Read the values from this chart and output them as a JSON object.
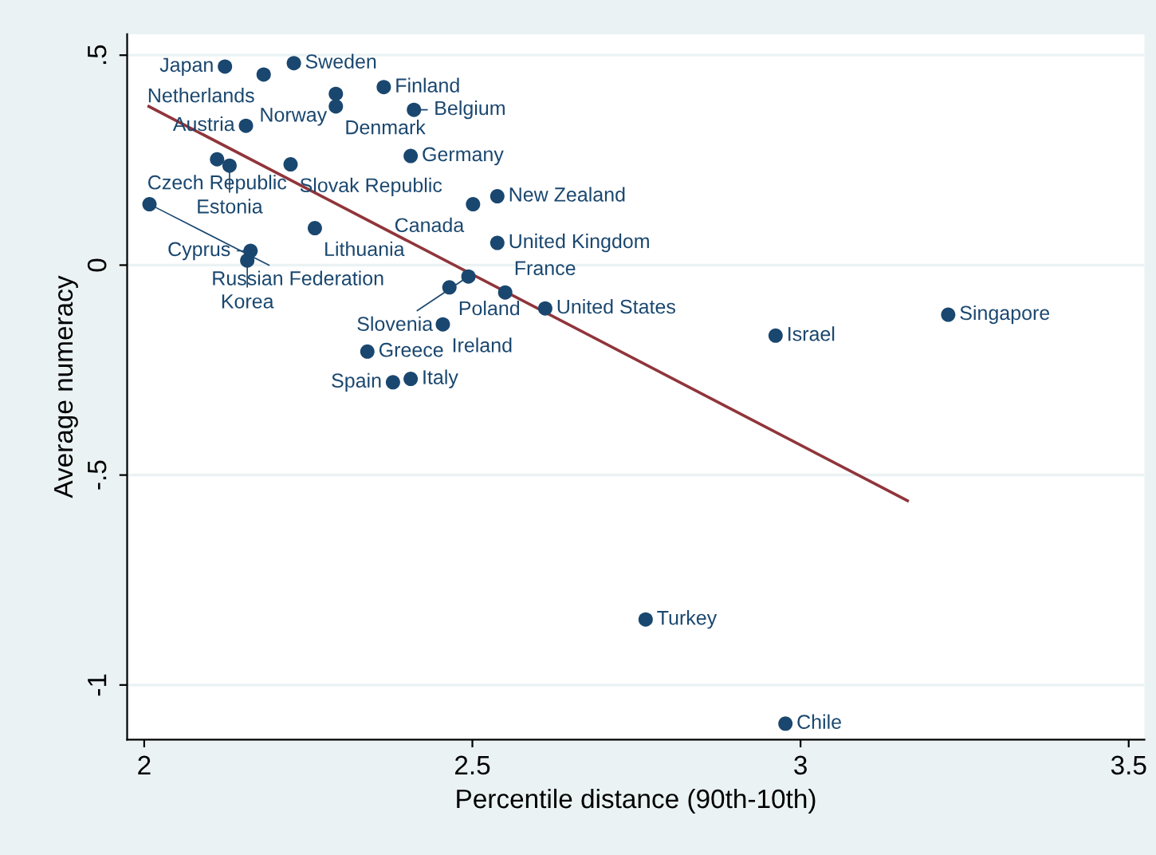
{
  "chart_data": {
    "type": "scatter",
    "xlabel": "Percentile distance (90th-10th)",
    "ylabel": "Average numeracy",
    "xlim": [
      1.974,
      3.524
    ],
    "ylim": [
      -1.13,
      0.55
    ],
    "xticks": [
      2,
      2.5,
      3,
      3.5
    ],
    "yticks": [
      {
        "value": -1,
        "label": "-1"
      },
      {
        "value": -0.5,
        "label": "-.5"
      },
      0,
      {
        "value": 0.5,
        "label": ".5"
      }
    ],
    "grid": "y",
    "series": [
      {
        "marker": "circle",
        "color": "#1a476f",
        "x": [
          2.123,
          2.228,
          2.182,
          2.365,
          2.292,
          2.292,
          2.411,
          2.155,
          2.111,
          2.13,
          2.223,
          2.406,
          2.008,
          2.501,
          2.538,
          2.26,
          2.538,
          2.162,
          2.157,
          2.494,
          2.465,
          2.55,
          2.611,
          2.455,
          2.34,
          2.406,
          2.379,
          2.962,
          3.225,
          2.764,
          2.977
        ],
        "values": [
          0.473,
          0.481,
          0.454,
          0.424,
          0.408,
          0.378,
          0.37,
          0.332,
          0.252,
          0.237,
          0.24,
          0.26,
          0.145,
          0.145,
          0.164,
          0.088,
          0.053,
          0.034,
          0.011,
          -0.027,
          -0.053,
          -0.065,
          -0.103,
          -0.141,
          -0.206,
          -0.271,
          -0.279,
          -0.168,
          -0.118,
          -0.844,
          -1.092
        ]
      },
      {
        "type": "line",
        "marker": "none",
        "color": "#90353b",
        "x": [
          2.007,
          3.163
        ],
        "values": [
          0.378,
          -0.561
        ]
      }
    ],
    "annotations": [
      {
        "text": "Japan",
        "x": 2.123,
        "y": 0.473
      },
      {
        "text": "Sweden",
        "x": 2.228,
        "y": 0.481
      },
      {
        "text": "Netherlands",
        "x": 2.182,
        "y": 0.454
      },
      {
        "text": "Finland",
        "x": 2.365,
        "y": 0.424
      },
      {
        "text": "Norway",
        "x": 2.292,
        "y": 0.408
      },
      {
        "text": "Denmark",
        "x": 2.292,
        "y": 0.378
      },
      {
        "text": "Belgium",
        "x": 2.411,
        "y": 0.37
      },
      {
        "text": "Austria",
        "x": 2.155,
        "y": 0.332
      },
      {
        "text": "Czech Republic",
        "x": 2.111,
        "y": 0.252
      },
      {
        "text": "Estonia",
        "x": 2.13,
        "y": 0.237
      },
      {
        "text": "Slovak Republic",
        "x": 2.223,
        "y": 0.24
      },
      {
        "text": "Germany",
        "x": 2.406,
        "y": 0.26
      },
      {
        "text": "Russian Federation",
        "x": 2.008,
        "y": 0.145
      },
      {
        "text": "Canada",
        "x": 2.501,
        "y": 0.145
      },
      {
        "text": "New Zealand",
        "x": 2.538,
        "y": 0.164
      },
      {
        "text": "Lithuania",
        "x": 2.26,
        "y": 0.088
      },
      {
        "text": "United Kingdom",
        "x": 2.538,
        "y": 0.053
      },
      {
        "text": "Cyprus",
        "x": 2.162,
        "y": 0.034
      },
      {
        "text": "Korea",
        "x": 2.157,
        "y": 0.011
      },
      {
        "text": "Slovenia",
        "x": 2.494,
        "y": -0.027
      },
      {
        "text": "Poland",
        "x": 2.465,
        "y": -0.053
      },
      {
        "text": "France",
        "x": 2.55,
        "y": -0.065
      },
      {
        "text": "United States",
        "x": 2.611,
        "y": -0.103
      },
      {
        "text": "Ireland",
        "x": 2.455,
        "y": -0.141
      },
      {
        "text": "Greece",
        "x": 2.34,
        "y": -0.206
      },
      {
        "text": "Italy",
        "x": 2.406,
        "y": -0.271
      },
      {
        "text": "Spain",
        "x": 2.379,
        "y": -0.279
      },
      {
        "text": "Israel",
        "x": 2.962,
        "y": -0.168
      },
      {
        "text": "Singapore",
        "x": 3.225,
        "y": -0.118
      },
      {
        "text": "Turkey",
        "x": 2.764,
        "y": -0.844
      },
      {
        "text": "Chile",
        "x": 2.977,
        "y": -1.092
      }
    ]
  }
}
